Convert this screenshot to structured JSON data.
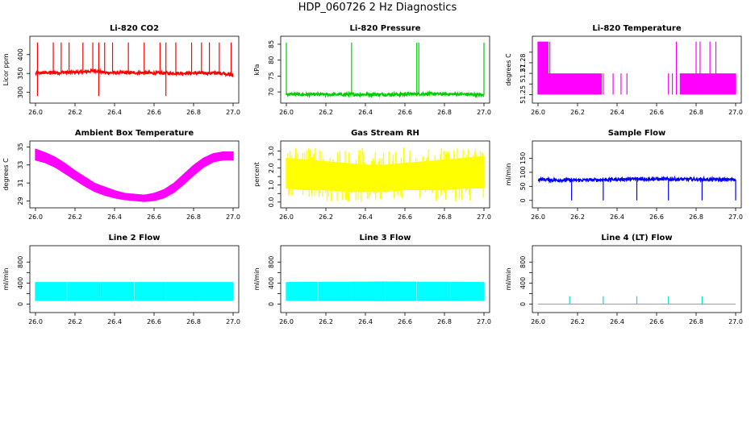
{
  "page_title": "HDP_060726  2 Hz Diagnostics",
  "chart_data": [
    {
      "id": "co2",
      "type": "line",
      "title": "Li-820 CO2",
      "ylabel": "Licor ppm",
      "color": "#ff0000",
      "xlim": [
        26.0,
        27.0
      ],
      "ylim": [
        280,
        440
      ],
      "xticks": [
        26.0,
        26.2,
        26.4,
        26.6,
        26.8,
        27.0
      ],
      "xtick_labels": [
        "26.0",
        "26.2",
        "26.4",
        "26.6",
        "26.8",
        "27.0"
      ],
      "yticks": [
        300,
        350,
        400
      ],
      "ytick_labels": [
        "300",
        "350",
        "400"
      ],
      "x": [
        26.0,
        26.05,
        26.1,
        26.15,
        26.2,
        26.25,
        26.3,
        26.35,
        26.4,
        26.45,
        26.5,
        26.55,
        26.6,
        26.65,
        26.7,
        26.75,
        26.8,
        26.85,
        26.9,
        26.95,
        27.0
      ],
      "y": [
        350,
        352,
        352,
        353,
        353,
        354,
        358,
        352,
        352,
        352,
        352,
        352,
        351,
        351,
        351,
        351,
        351,
        351,
        351,
        351,
        345
      ],
      "spikes_up": [
        26.01,
        26.09,
        26.13,
        26.17,
        26.24,
        26.29,
        26.32,
        26.35,
        26.39,
        26.47,
        26.55,
        26.63,
        26.66,
        26.71,
        26.79,
        26.84,
        26.88,
        26.93,
        26.99
      ],
      "spike_high": 432,
      "spikes_down": [
        26.01,
        26.32,
        26.66
      ],
      "spike_low": 290
    },
    {
      "id": "pressure",
      "type": "line",
      "title": "Li-820 Pressure",
      "ylabel": "kPa",
      "color": "#00cc00",
      "xlim": [
        26.0,
        27.0
      ],
      "ylim": [
        67.5,
        86.5
      ],
      "xticks": [
        26.0,
        26.2,
        26.4,
        26.6,
        26.8,
        27.0
      ],
      "xtick_labels": [
        "26.0",
        "26.2",
        "26.4",
        "26.6",
        "26.8",
        "27.0"
      ],
      "yticks": [
        70,
        75,
        80,
        85
      ],
      "ytick_labels": [
        "70",
        "75",
        "80",
        "85"
      ],
      "x": [
        26.0,
        26.1,
        26.2,
        26.3,
        26.4,
        26.5,
        26.6,
        26.7,
        26.8,
        26.9,
        27.0
      ],
      "y": [
        69.3,
        69.2,
        69.2,
        69.2,
        69.2,
        69.2,
        69.3,
        69.4,
        69.3,
        69.3,
        69.0
      ],
      "spikes_up": [
        26.0,
        26.33,
        26.66,
        26.67,
        27.0
      ],
      "spike_high": 85.5
    },
    {
      "id": "li820temp",
      "type": "step",
      "title": "Li-820 Temperature",
      "ylabel": "degrees C",
      "color": "#ff00ff",
      "xlim": [
        26.0,
        27.0
      ],
      "ylim": [
        51.245,
        51.302
      ],
      "xticks": [
        26.0,
        26.2,
        26.4,
        26.6,
        26.8,
        27.0
      ],
      "xtick_labels": [
        "26.0",
        "26.2",
        "26.4",
        "26.6",
        "26.8",
        "27.0"
      ],
      "yticks": [
        51.25,
        51.26,
        51.27,
        51.28,
        51.29
      ],
      "ytick_labels": [
        "51.25",
        "",
        "51.27",
        "51.28",
        ""
      ],
      "levels": [
        51.25,
        51.27,
        51.28,
        51.3
      ],
      "segments": [
        {
          "x0": 26.0,
          "x1": 26.05,
          "low": 51.25,
          "high": 51.3
        },
        {
          "x0": 26.05,
          "x1": 26.32,
          "low": 51.25,
          "high": 51.27
        },
        {
          "x0": 26.32,
          "x1": 26.72,
          "low": 51.25,
          "high": 51.25
        },
        {
          "x0": 26.72,
          "x1": 27.0,
          "low": 51.25,
          "high": 51.27
        }
      ],
      "bursts_to_top": [
        26.06,
        26.7,
        26.8,
        26.82,
        26.87,
        26.9
      ],
      "bursts_mid": [
        26.21,
        26.24,
        26.33,
        26.38,
        26.42,
        26.45,
        26.66,
        26.68
      ]
    },
    {
      "id": "ambtemp",
      "type": "band",
      "title": "Ambient Box Temperature",
      "ylabel": "degrees C",
      "color": "#ff00ff",
      "xlim": [
        26.0,
        27.0
      ],
      "ylim": [
        28.6,
        35.3
      ],
      "xticks": [
        26.0,
        26.2,
        26.4,
        26.6,
        26.8,
        27.0
      ],
      "xtick_labels": [
        "26.0",
        "26.2",
        "26.4",
        "26.6",
        "26.8",
        "27.0"
      ],
      "yticks": [
        29,
        31,
        33,
        35
      ],
      "ytick_labels": [
        "29",
        "31",
        "33",
        "35"
      ],
      "x": [
        26.0,
        26.05,
        26.1,
        26.15,
        26.2,
        26.25,
        26.3,
        26.35,
        26.4,
        26.45,
        26.5,
        26.55,
        26.6,
        26.65,
        26.7,
        26.75,
        26.8,
        26.85,
        26.9,
        26.95,
        27.0
      ],
      "lower": [
        33.5,
        33.2,
        32.7,
        32.0,
        31.3,
        30.6,
        30.0,
        29.6,
        29.3,
        29.1,
        29.0,
        28.9,
        29.0,
        29.3,
        29.9,
        30.8,
        31.8,
        32.7,
        33.3,
        33.5,
        33.5
      ],
      "upper": [
        34.8,
        34.4,
        33.9,
        33.2,
        32.4,
        31.7,
        31.0,
        30.6,
        30.2,
        29.9,
        29.8,
        29.7,
        29.9,
        30.3,
        31.0,
        32.0,
        33.0,
        33.8,
        34.3,
        34.5,
        34.5
      ]
    },
    {
      "id": "rh",
      "type": "band",
      "title": "Gas Stream RH",
      "ylabel": "percent",
      "color": "#ffff00",
      "xlim": [
        26.0,
        27.0
      ],
      "ylim": [
        -0.15,
        3.4
      ],
      "xticks": [
        26.0,
        26.2,
        26.4,
        26.6,
        26.8,
        27.0
      ],
      "xtick_labels": [
        "26.0",
        "26.2",
        "26.4",
        "26.6",
        "26.8",
        "27.0"
      ],
      "yticks": [
        0.0,
        0.5,
        1.0,
        1.5,
        2.0,
        2.5,
        3.0
      ],
      "ytick_labels": [
        "0.0",
        "",
        "1.0",
        "",
        "2.0",
        "",
        "3.0"
      ],
      "x": [
        26.0,
        26.1,
        26.2,
        26.3,
        26.4,
        26.5,
        26.6,
        26.7,
        26.8,
        26.9,
        27.0
      ],
      "lower": [
        0.8,
        0.7,
        0.7,
        0.6,
        0.6,
        0.6,
        0.7,
        0.7,
        0.7,
        0.8,
        0.8
      ],
      "upper": [
        2.6,
        2.5,
        2.4,
        2.3,
        2.2,
        2.2,
        2.3,
        2.4,
        2.5,
        2.6,
        2.7
      ],
      "noise_high": 3.2,
      "noise_low": 0.0
    },
    {
      "id": "sampleflow",
      "type": "line",
      "title": "Sample Flow",
      "ylabel": "ml/min",
      "color": "#0000ff",
      "xlim": [
        26.0,
        27.0
      ],
      "ylim": [
        -15,
        200
      ],
      "xticks": [
        26.0,
        26.2,
        26.4,
        26.6,
        26.8,
        27.0
      ],
      "xtick_labels": [
        "26.0",
        "26.2",
        "26.4",
        "26.6",
        "26.8",
        "27.0"
      ],
      "yticks": [
        0,
        50,
        100,
        150
      ],
      "ytick_labels": [
        "0",
        "50",
        "100",
        "150"
      ],
      "x": [
        26.0,
        26.1,
        26.2,
        26.3,
        26.4,
        26.5,
        26.6,
        26.7,
        26.8,
        26.9,
        27.0
      ],
      "y": [
        75,
        72,
        72,
        73,
        75,
        76,
        76,
        75,
        75,
        74,
        74
      ],
      "spikes_down": [
        26.17,
        26.33,
        26.5,
        26.66,
        26.83,
        27.0
      ],
      "spike_low": 0
    },
    {
      "id": "line2",
      "type": "band",
      "title": "Line 2 Flow",
      "ylabel": "ml/min",
      "color": "#00ffff",
      "xlim": [
        26.0,
        27.0
      ],
      "ylim": [
        -100,
        1050
      ],
      "xticks": [
        26.0,
        26.2,
        26.4,
        26.6,
        26.8,
        27.0
      ],
      "xtick_labels": [
        "26.0",
        "26.2",
        "26.4",
        "26.6",
        "26.8",
        "27.0"
      ],
      "yticks": [
        0,
        200,
        400,
        600,
        800
      ],
      "ytick_labels": [
        "0",
        "",
        "400",
        "",
        "800"
      ],
      "x": [
        26.0,
        27.0
      ],
      "lower": [
        60,
        60
      ],
      "upper": [
        420,
        420
      ],
      "gaps": [
        26.16,
        26.33,
        26.5,
        26.66,
        26.83
      ]
    },
    {
      "id": "line3",
      "type": "band",
      "title": "Line 3 Flow",
      "ylabel": "ml/min",
      "color": "#00ffff",
      "xlim": [
        26.0,
        27.0
      ],
      "ylim": [
        -100,
        1050
      ],
      "xticks": [
        26.0,
        26.2,
        26.4,
        26.6,
        26.8,
        27.0
      ],
      "xtick_labels": [
        "26.0",
        "26.2",
        "26.4",
        "26.6",
        "26.8",
        "27.0"
      ],
      "yticks": [
        0,
        200,
        400,
        600,
        800
      ],
      "ytick_labels": [
        "0",
        "",
        "400",
        "",
        "800"
      ],
      "x": [
        26.0,
        26.5,
        27.0
      ],
      "lower": [
        60,
        55,
        60
      ],
      "upper": [
        420,
        430,
        420
      ],
      "gaps": [
        26.16,
        26.33,
        26.5,
        26.66,
        26.83
      ]
    },
    {
      "id": "line4",
      "type": "line",
      "title": "Line 4 (LT) Flow",
      "ylabel": "ml/min",
      "color": "#00dddd",
      "xlim": [
        26.0,
        27.0
      ],
      "ylim": [
        -100,
        1050
      ],
      "xticks": [
        26.0,
        26.2,
        26.4,
        26.6,
        26.8,
        27.0
      ],
      "xtick_labels": [
        "26.0",
        "26.2",
        "26.4",
        "26.6",
        "26.8",
        "27.0"
      ],
      "yticks": [
        0,
        200,
        400,
        600,
        800
      ],
      "ytick_labels": [
        "0",
        "",
        "400",
        "",
        "800"
      ],
      "x": [
        26.0,
        27.0
      ],
      "y": [
        0,
        0
      ],
      "spikes_up": [
        26.16,
        26.33,
        26.5,
        26.66,
        26.83
      ],
      "spike_high": 150
    }
  ]
}
